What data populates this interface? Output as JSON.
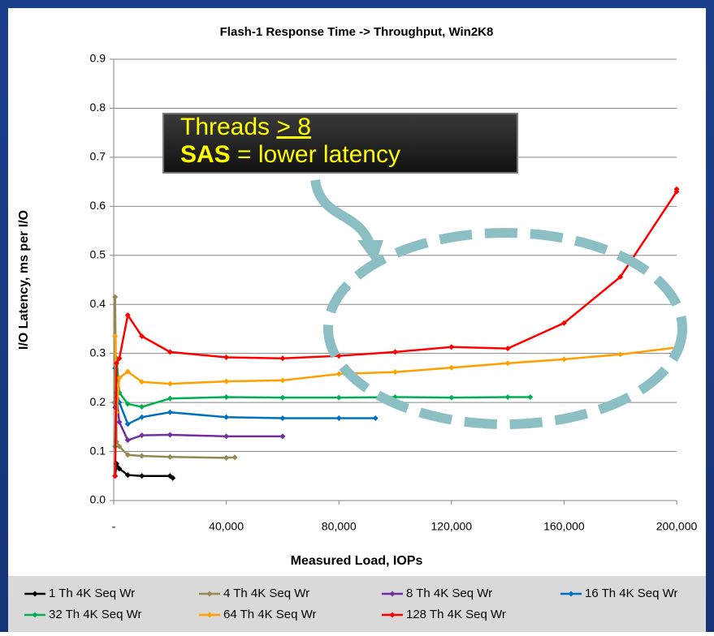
{
  "chart_data": {
    "type": "line",
    "title": "Flash-1 Response Time -> Throughput, Win2K8",
    "x_label": "Measured Load, IOPs",
    "y_label": "I/O Latency, ms per I/O",
    "xlim": [
      0,
      200000
    ],
    "ylim": [
      0,
      0.9
    ],
    "xticks": [
      {
        "value": 0,
        "label": "-"
      },
      {
        "value": 40000,
        "label": "40,000"
      },
      {
        "value": 80000,
        "label": "80,000"
      },
      {
        "value": 120000,
        "label": "120,000"
      },
      {
        "value": 160000,
        "label": "160,000"
      },
      {
        "value": 200000,
        "label": "200,000"
      }
    ],
    "yticks": [
      {
        "value": 0,
        "label": "0.0"
      },
      0.1,
      0.2,
      0.3,
      0.4,
      0.5,
      0.6,
      0.7,
      0.8,
      0.9
    ],
    "grid": true,
    "legend": "bottom",
    "annotation": {
      "line1": [
        "Threads ",
        "> 8"
      ],
      "line2": [
        "SAS",
        " = lower latency"
      ]
    },
    "series": [
      {
        "name": "1 Th 4K Seq Wr",
        "color": "#000000",
        "x": [
          500,
          1000,
          2000,
          5000,
          10000,
          20000,
          21000
        ],
        "values": [
          0.05,
          0.075,
          0.065,
          0.052,
          0.05,
          0.05,
          0.046
        ]
      },
      {
        "name": "4 Th 4K Seq Wr",
        "color": "#948a54",
        "x": [
          200,
          500,
          1000,
          2000,
          5000,
          10000,
          20000,
          40000,
          43000
        ],
        "values": [
          0.2,
          0.415,
          0.12,
          0.11,
          0.093,
          0.091,
          0.089,
          0.087,
          0.088
        ]
      },
      {
        "name": "8 Th 4K Seq Wr",
        "color": "#7030a0",
        "x": [
          500,
          1000,
          2000,
          5000,
          10000,
          20000,
          40000,
          60000
        ],
        "values": [
          0.19,
          0.21,
          0.16,
          0.123,
          0.133,
          0.134,
          0.131,
          0.131
        ]
      },
      {
        "name": "16 Th 4K Seq Wr",
        "color": "#0070c0",
        "x": [
          500,
          1000,
          2000,
          5000,
          10000,
          20000,
          40000,
          60000,
          80000,
          93000
        ],
        "values": [
          0.27,
          0.22,
          0.2,
          0.156,
          0.17,
          0.18,
          0.17,
          0.168,
          0.168,
          0.168
        ]
      },
      {
        "name": "32 Th 4K Seq Wr",
        "color": "#00b050",
        "x": [
          500,
          1000,
          2000,
          5000,
          10000,
          20000,
          40000,
          60000,
          80000,
          100000,
          120000,
          140000,
          148000
        ],
        "values": [
          0.11,
          0.29,
          0.22,
          0.197,
          0.191,
          0.208,
          0.211,
          0.21,
          0.21,
          0.211,
          0.21,
          0.211,
          0.211
        ]
      },
      {
        "name": "64 Th 4K Seq Wr",
        "color": "#ffa000",
        "x": [
          500,
          1000,
          2000,
          5000,
          10000,
          20000,
          40000,
          60000,
          80000,
          100000,
          120000,
          140000,
          160000,
          180000,
          200000
        ],
        "values": [
          0.335,
          0.18,
          0.25,
          0.263,
          0.242,
          0.238,
          0.243,
          0.245,
          0.258,
          0.262,
          0.271,
          0.28,
          0.288,
          0.298,
          0.312
        ]
      },
      {
        "name": "128 Th 4K Seq Wr",
        "color": "#ff0000",
        "x": [
          500,
          1000,
          2000,
          5000,
          10000,
          20000,
          40000,
          60000,
          80000,
          100000,
          120000,
          140000,
          160000,
          180000,
          200000,
          200000
        ],
        "values": [
          0.05,
          0.28,
          0.29,
          0.378,
          0.335,
          0.303,
          0.292,
          0.29,
          0.295,
          0.303,
          0.313,
          0.31,
          0.362,
          0.456,
          0.63,
          0.635
        ]
      }
    ]
  }
}
